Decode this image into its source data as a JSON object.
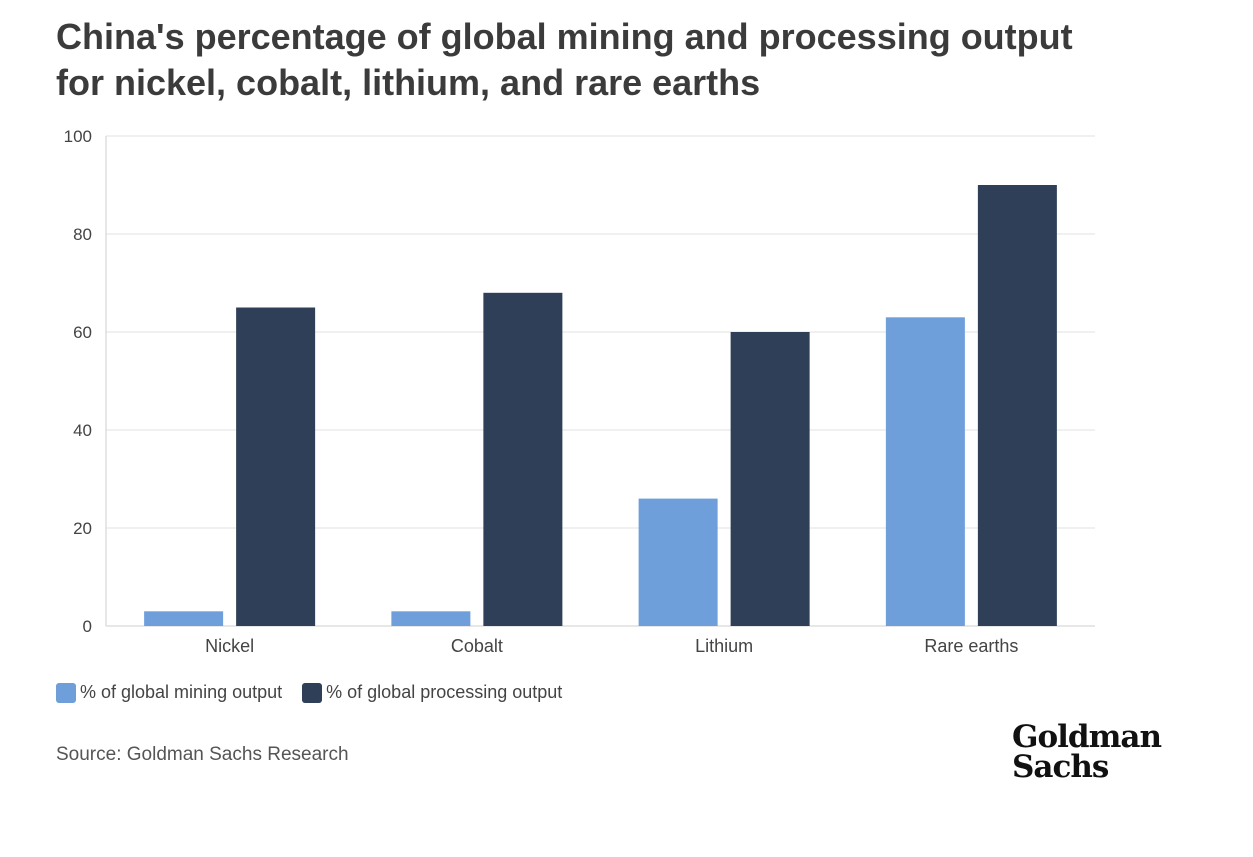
{
  "title": {
    "line1": "China's percentage of global mining and processing output",
    "line2": "for nickel, cobalt, lithium, and rare earths"
  },
  "source": "Source: Goldman Sachs Research",
  "logo": {
    "line1": "Goldman",
    "line2": "Sachs"
  },
  "colors": {
    "mining": "#6f9fdb",
    "processing": "#2e3f57",
    "grid": "#e2e2e2",
    "axis": "#cfcfcf"
  },
  "chart_data": {
    "type": "bar",
    "categories": [
      "Nickel",
      "Cobalt",
      "Lithium",
      "Rare earths"
    ],
    "series": [
      {
        "name": "% of global mining output",
        "values": [
          3,
          3,
          26,
          63
        ]
      },
      {
        "name": "% of global processing output",
        "values": [
          65,
          68,
          60,
          90
        ]
      }
    ],
    "yticks": [
      "0",
      "20",
      "40",
      "60",
      "80",
      "100"
    ],
    "ylim": [
      0,
      100
    ],
    "grid": true,
    "legend": "bottom-left"
  }
}
